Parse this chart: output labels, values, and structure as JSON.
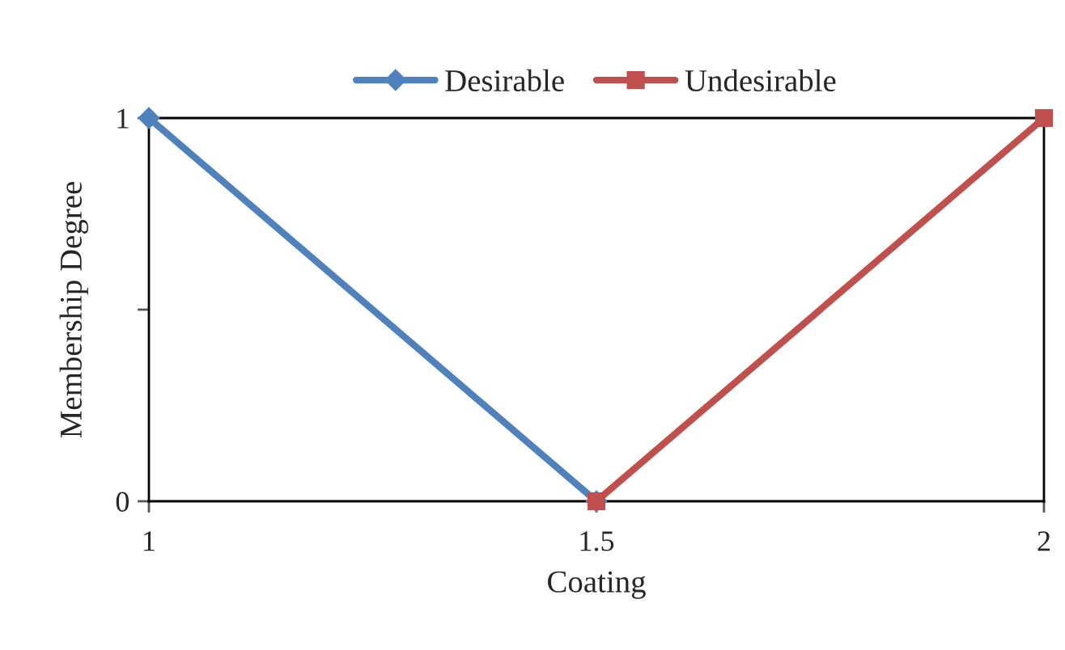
{
  "chart_data": {
    "type": "line",
    "xlabel": "Coating",
    "ylabel": "Membership Degree",
    "xlim": [
      1,
      2
    ],
    "xticks": [
      1,
      1.5,
      2
    ],
    "ylim": [
      0,
      1
    ],
    "yticks": [
      0,
      {
        "value": 0.5,
        "label": null
      },
      1
    ],
    "legend": "top",
    "grid": false,
    "series": [
      {
        "name": "Desirable",
        "color": "#4f81bd",
        "marker": "diamond",
        "x": [
          1,
          1.5
        ],
        "values": [
          1,
          0
        ]
      },
      {
        "name": "Undesirable",
        "color": "#c0504d",
        "marker": "square",
        "x": [
          1.5,
          2
        ],
        "values": [
          0,
          1
        ]
      }
    ]
  }
}
